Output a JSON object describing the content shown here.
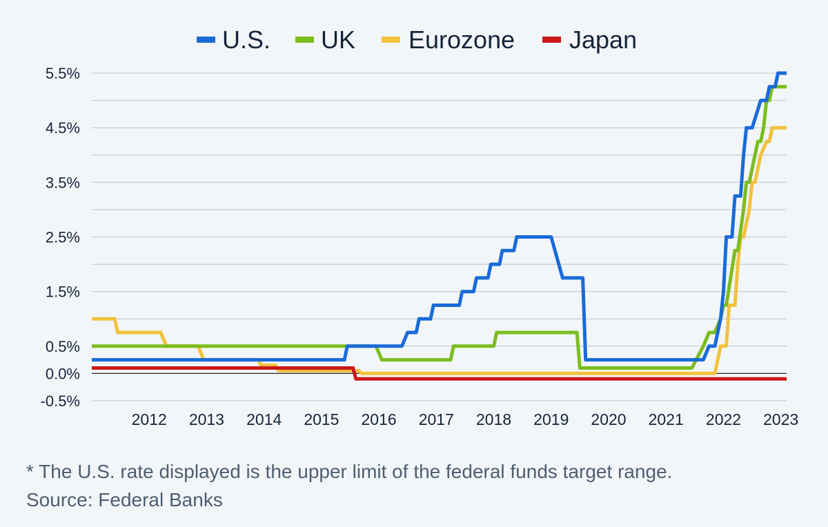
{
  "chart_data": {
    "type": "line",
    "title": "",
    "xlabel": "",
    "ylabel": "",
    "x_tick_labels": [
      "2012",
      "2013",
      "2014",
      "2015",
      "2016",
      "2017",
      "2018",
      "2019",
      "2020",
      "2021",
      "2022",
      "2023"
    ],
    "y_tick_labels": [
      "5.5%",
      "4.5%",
      "3.5%",
      "2.5%",
      "1.5%",
      "0.5%",
      "0.0%",
      "-0.5%"
    ],
    "y_ticks": [
      5.5,
      4.5,
      3.5,
      2.5,
      1.5,
      0.5,
      0.0,
      -0.5
    ],
    "ylim": [
      -0.5,
      5.5
    ],
    "xlim": [
      2011.5,
      2023.6
    ],
    "grid": true,
    "legend_position": "top",
    "series": [
      {
        "name": "U.S.",
        "color": "#1a6bd8",
        "points": [
          [
            2011.5,
            0.25
          ],
          [
            2015.9,
            0.25
          ],
          [
            2015.95,
            0.5
          ],
          [
            2016.9,
            0.5
          ],
          [
            2017.0,
            0.75
          ],
          [
            2017.15,
            0.75
          ],
          [
            2017.2,
            1.0
          ],
          [
            2017.4,
            1.0
          ],
          [
            2017.45,
            1.25
          ],
          [
            2017.9,
            1.25
          ],
          [
            2017.95,
            1.5
          ],
          [
            2018.15,
            1.5
          ],
          [
            2018.2,
            1.75
          ],
          [
            2018.4,
            1.75
          ],
          [
            2018.45,
            2.0
          ],
          [
            2018.6,
            2.0
          ],
          [
            2018.65,
            2.25
          ],
          [
            2018.85,
            2.25
          ],
          [
            2018.9,
            2.5
          ],
          [
            2019.5,
            2.5
          ],
          [
            2019.7,
            1.75
          ],
          [
            2020.05,
            1.75
          ],
          [
            2020.1,
            0.25
          ],
          [
            2022.15,
            0.25
          ],
          [
            2022.25,
            0.5
          ],
          [
            2022.35,
            0.5
          ],
          [
            2022.45,
            1.0
          ],
          [
            2022.5,
            1.5
          ],
          [
            2022.55,
            2.5
          ],
          [
            2022.65,
            2.5
          ],
          [
            2022.7,
            3.25
          ],
          [
            2022.8,
            3.25
          ],
          [
            2022.85,
            4.0
          ],
          [
            2022.9,
            4.5
          ],
          [
            2023.0,
            4.5
          ],
          [
            2023.15,
            5.0
          ],
          [
            2023.25,
            5.0
          ],
          [
            2023.3,
            5.25
          ],
          [
            2023.4,
            5.25
          ],
          [
            2023.45,
            5.5
          ],
          [
            2023.6,
            5.5
          ]
        ]
      },
      {
        "name": "UK",
        "color": "#7cbd1f",
        "points": [
          [
            2011.5,
            0.5
          ],
          [
            2016.45,
            0.5
          ],
          [
            2016.55,
            0.25
          ],
          [
            2017.75,
            0.25
          ],
          [
            2017.8,
            0.5
          ],
          [
            2018.5,
            0.5
          ],
          [
            2018.55,
            0.75
          ],
          [
            2019.95,
            0.75
          ],
          [
            2020.0,
            0.1
          ],
          [
            2021.95,
            0.1
          ],
          [
            2022.15,
            0.5
          ],
          [
            2022.25,
            0.75
          ],
          [
            2022.35,
            0.75
          ],
          [
            2022.45,
            1.0
          ],
          [
            2022.5,
            1.25
          ],
          [
            2022.55,
            1.25
          ],
          [
            2022.7,
            2.25
          ],
          [
            2022.75,
            2.25
          ],
          [
            2022.85,
            3.0
          ],
          [
            2022.9,
            3.5
          ],
          [
            2022.95,
            3.5
          ],
          [
            2023.05,
            4.0
          ],
          [
            2023.1,
            4.25
          ],
          [
            2023.15,
            4.25
          ],
          [
            2023.2,
            4.5
          ],
          [
            2023.25,
            5.0
          ],
          [
            2023.3,
            5.0
          ],
          [
            2023.35,
            5.25
          ],
          [
            2023.6,
            5.25
          ]
        ]
      },
      {
        "name": "Eurozone",
        "color": "#f2c23e",
        "points": [
          [
            2011.5,
            1.0
          ],
          [
            2011.9,
            1.0
          ],
          [
            2011.95,
            0.75
          ],
          [
            2012.7,
            0.75
          ],
          [
            2012.8,
            0.5
          ],
          [
            2013.35,
            0.5
          ],
          [
            2013.45,
            0.25
          ],
          [
            2014.4,
            0.25
          ],
          [
            2014.45,
            0.15
          ],
          [
            2014.7,
            0.15
          ],
          [
            2014.75,
            0.05
          ],
          [
            2016.15,
            0.05
          ],
          [
            2016.2,
            0.0
          ],
          [
            2022.35,
            0.0
          ],
          [
            2022.45,
            0.5
          ],
          [
            2022.55,
            0.5
          ],
          [
            2022.6,
            1.25
          ],
          [
            2022.7,
            1.25
          ],
          [
            2022.75,
            2.0
          ],
          [
            2022.8,
            2.5
          ],
          [
            2022.85,
            2.5
          ],
          [
            2022.95,
            3.0
          ],
          [
            2023.0,
            3.5
          ],
          [
            2023.05,
            3.5
          ],
          [
            2023.15,
            4.0
          ],
          [
            2023.25,
            4.25
          ],
          [
            2023.3,
            4.25
          ],
          [
            2023.35,
            4.5
          ],
          [
            2023.6,
            4.5
          ]
        ]
      },
      {
        "name": "Japan",
        "color": "#cc1719",
        "points": [
          [
            2011.5,
            0.1
          ],
          [
            2016.05,
            0.1
          ],
          [
            2016.1,
            -0.1
          ],
          [
            2023.6,
            -0.1
          ]
        ]
      }
    ]
  },
  "footer": {
    "footnote": "* The U.S. rate displayed is the upper limit of the federal funds target range.",
    "source": "Source: Federal Banks"
  }
}
